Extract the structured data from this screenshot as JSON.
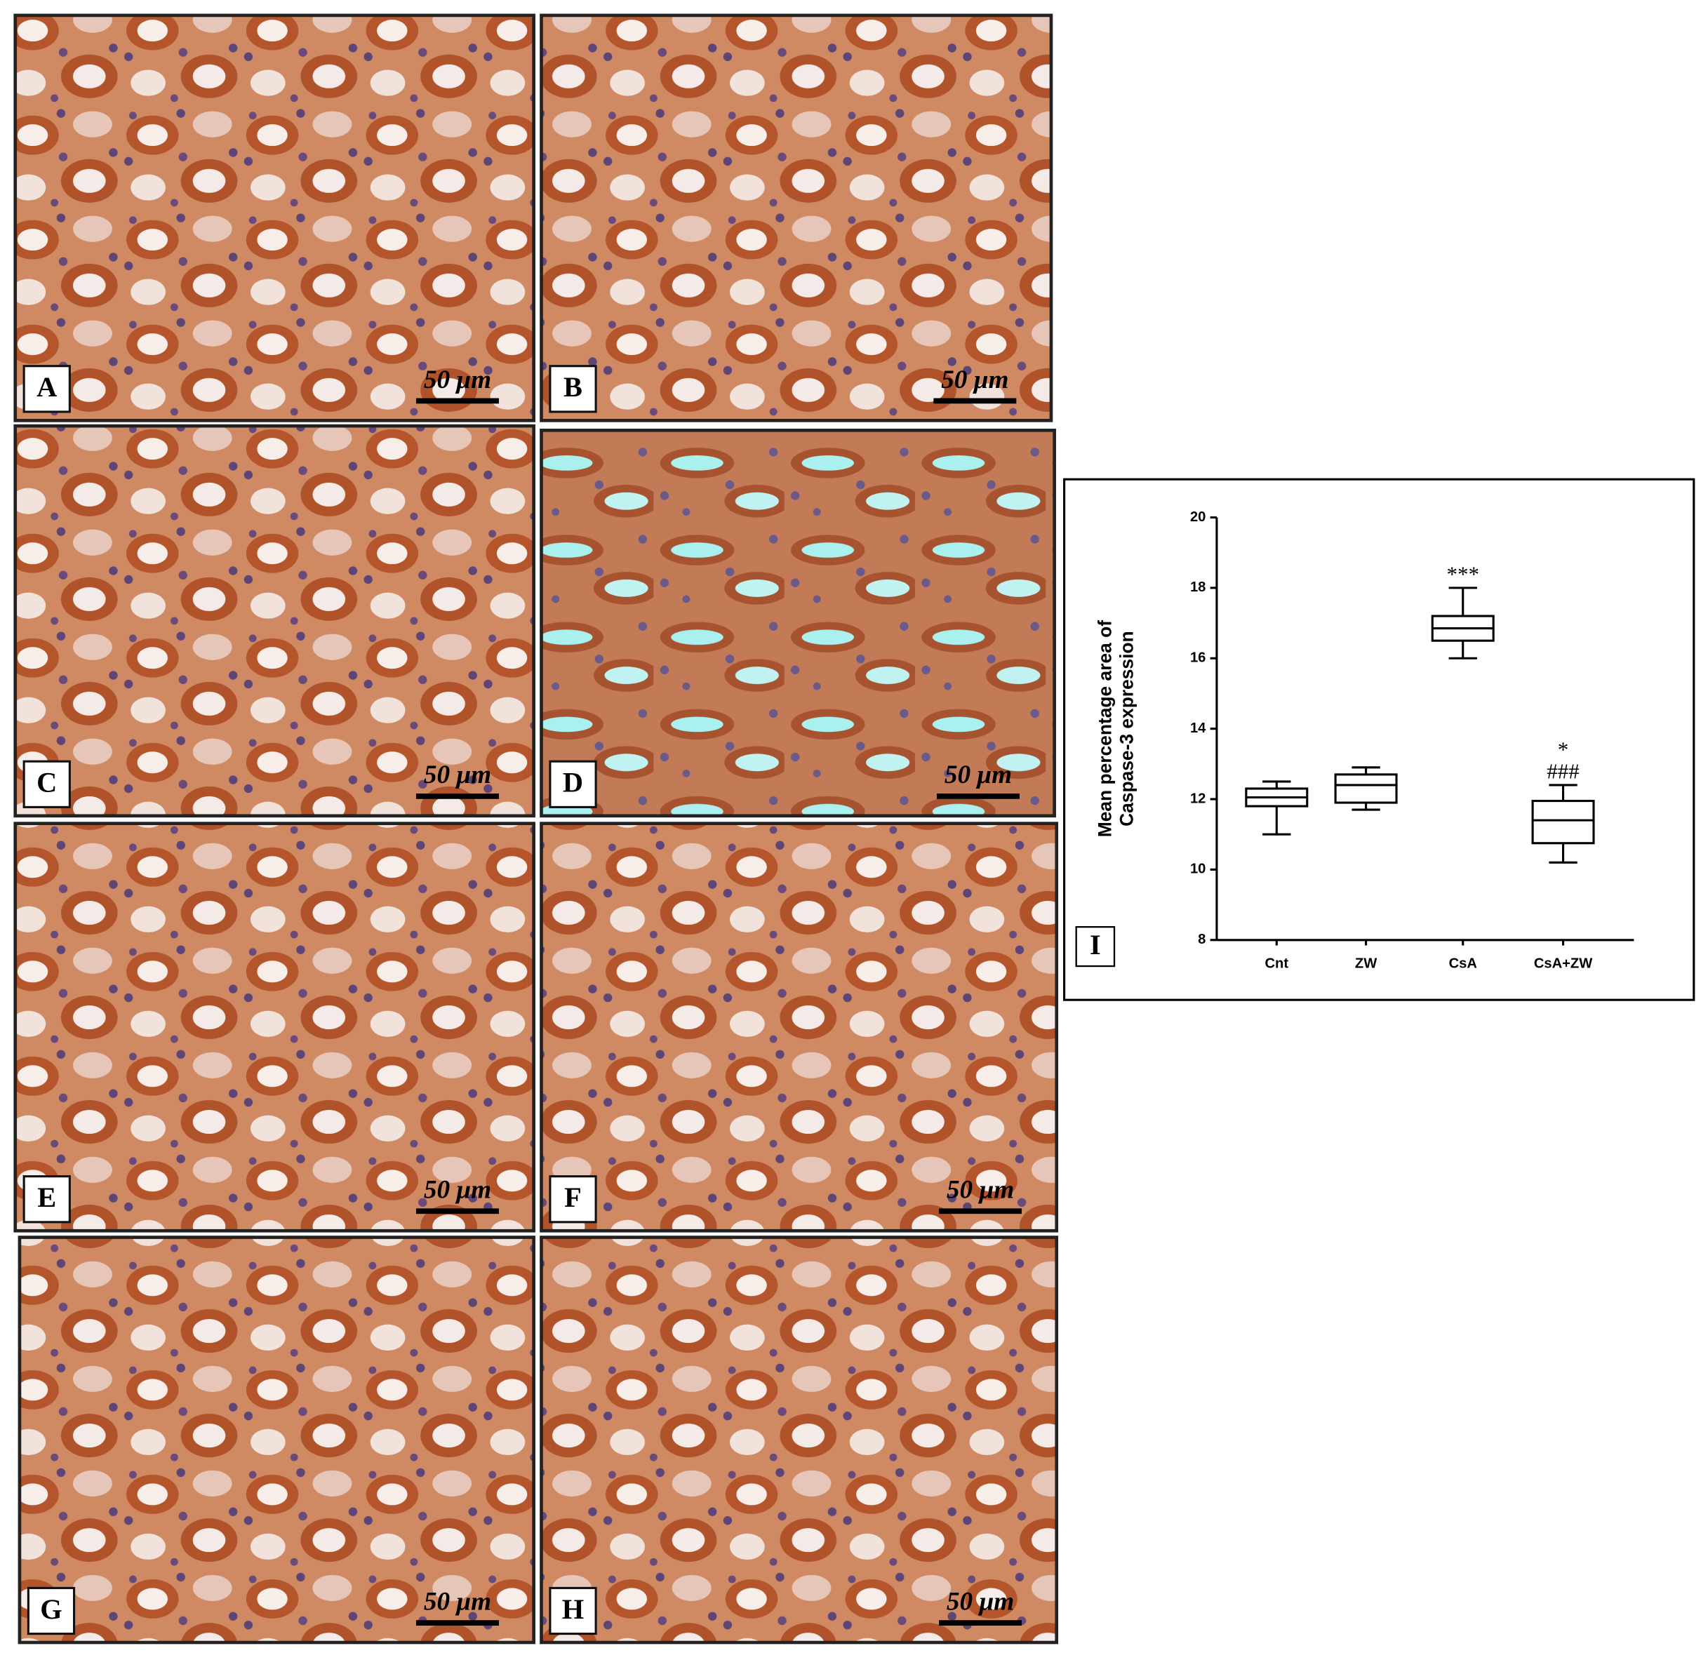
{
  "panels": [
    {
      "label": "A",
      "scale_bar": "50 μm"
    },
    {
      "label": "B",
      "scale_bar": "50 μm"
    },
    {
      "label": "C",
      "scale_bar": "50 μm"
    },
    {
      "label": "D",
      "scale_bar": "50 μm"
    },
    {
      "label": "E",
      "scale_bar": "50 μm"
    },
    {
      "label": "F",
      "scale_bar": "50 μm"
    },
    {
      "label": "G",
      "scale_bar": "50 μm"
    },
    {
      "label": "H",
      "scale_bar": "50 μm"
    }
  ],
  "chart_data": {
    "type": "box",
    "panel_label": "I",
    "y_label": [
      "Mean percentage area of",
      "Caspase-3 expression"
    ],
    "categories": [
      "Cnt",
      "ZW",
      "CsA",
      "CsA+ZW"
    ],
    "min": [
      11.0,
      11.7,
      16.0,
      10.2
    ],
    "q1": [
      11.8,
      11.9,
      16.5,
      10.75
    ],
    "median": [
      12.05,
      12.4,
      16.85,
      11.4
    ],
    "q3": [
      12.3,
      12.7,
      17.2,
      11.95
    ],
    "max": [
      12.5,
      12.9,
      18.0,
      12.4
    ],
    "annotations": [
      {
        "category": "CsA",
        "text": "***"
      },
      {
        "category": "CsA+ZW",
        "text": "###"
      },
      {
        "category": "CsA+ZW",
        "text": "*"
      }
    ],
    "ylim": [
      8,
      20
    ],
    "yticks": [
      8,
      10,
      12,
      14,
      16,
      18,
      20
    ],
    "color": "#000000"
  }
}
